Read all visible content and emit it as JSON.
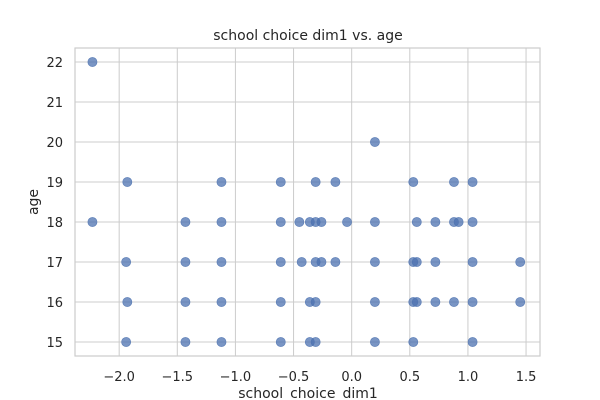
{
  "chart_data": {
    "type": "scatter",
    "title": "school choice dim1 vs. age",
    "xlabel": "school_choice_dim1",
    "ylabel": "age",
    "xlim": [
      -2.38,
      1.62
    ],
    "ylim": [
      14.65,
      22.35
    ],
    "xticks": [
      -2.0,
      -1.5,
      -1.0,
      -0.5,
      0.0,
      0.5,
      1.0,
      1.5
    ],
    "xtick_labels": [
      "−2.0",
      "−1.5",
      "−1.0",
      "−0.5",
      "0.0",
      "0.5",
      "1.0",
      "1.5"
    ],
    "yticks": [
      15,
      16,
      17,
      18,
      19,
      20,
      21,
      22
    ],
    "ytick_labels": [
      "15",
      "16",
      "17",
      "18",
      "19",
      "20",
      "21",
      "22"
    ],
    "grid": true,
    "marker_color": "#4c72b0",
    "points": [
      [
        -2.23,
        22
      ],
      [
        -2.23,
        18
      ],
      [
        -1.93,
        19
      ],
      [
        -1.94,
        17
      ],
      [
        -1.93,
        16
      ],
      [
        -1.94,
        15
      ],
      [
        -1.43,
        18
      ],
      [
        -1.43,
        17
      ],
      [
        -1.43,
        16
      ],
      [
        -1.43,
        15
      ],
      [
        -1.12,
        19
      ],
      [
        -1.12,
        18
      ],
      [
        -1.12,
        17
      ],
      [
        -1.12,
        16
      ],
      [
        -1.12,
        15
      ],
      [
        -0.61,
        19
      ],
      [
        -0.61,
        18
      ],
      [
        -0.61,
        17
      ],
      [
        -0.61,
        16
      ],
      [
        -0.61,
        15
      ],
      [
        -0.45,
        18
      ],
      [
        -0.43,
        17
      ],
      [
        -0.36,
        18
      ],
      [
        -0.36,
        16
      ],
      [
        -0.36,
        15
      ],
      [
        -0.31,
        19
      ],
      [
        -0.31,
        18
      ],
      [
        -0.31,
        17
      ],
      [
        -0.31,
        16
      ],
      [
        -0.31,
        15
      ],
      [
        -0.26,
        18
      ],
      [
        -0.26,
        17
      ],
      [
        -0.14,
        19
      ],
      [
        -0.14,
        17
      ],
      [
        -0.04,
        18
      ],
      [
        0.2,
        20
      ],
      [
        0.2,
        18
      ],
      [
        0.2,
        17
      ],
      [
        0.2,
        16
      ],
      [
        0.2,
        15
      ],
      [
        0.53,
        19
      ],
      [
        0.53,
        17
      ],
      [
        0.53,
        16
      ],
      [
        0.53,
        15
      ],
      [
        0.56,
        18
      ],
      [
        0.56,
        17
      ],
      [
        0.56,
        16
      ],
      [
        0.72,
        18
      ],
      [
        0.72,
        17
      ],
      [
        0.72,
        16
      ],
      [
        0.88,
        19
      ],
      [
        0.88,
        18
      ],
      [
        0.88,
        16
      ],
      [
        0.92,
        18
      ],
      [
        1.04,
        19
      ],
      [
        1.04,
        18
      ],
      [
        1.04,
        17
      ],
      [
        1.04,
        16
      ],
      [
        1.04,
        15
      ],
      [
        1.45,
        17
      ],
      [
        1.45,
        16
      ]
    ]
  }
}
